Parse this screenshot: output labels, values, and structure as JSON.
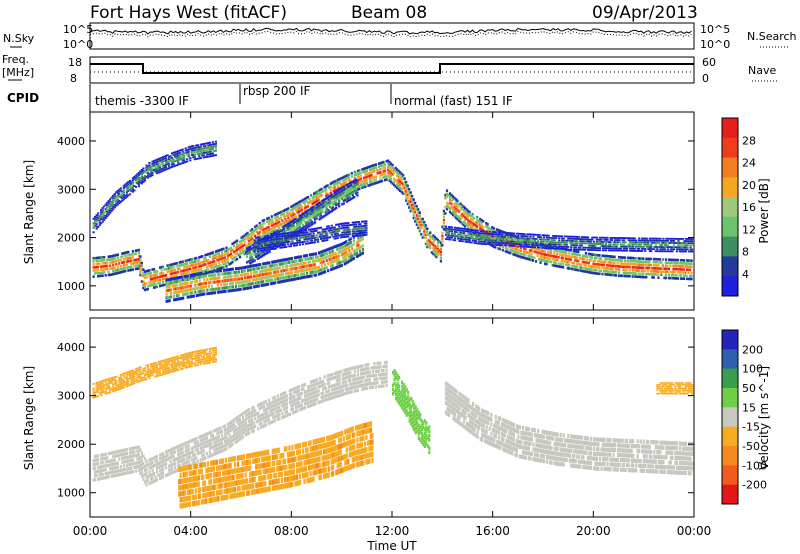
{
  "header": {
    "title": "Fort Hays West (fitACF)",
    "beam": "Beam 08",
    "date": "09/Apr/2013"
  },
  "noise_panel": {
    "left_label": "N.Sky",
    "left_ticks": [
      "10^5",
      "10^0"
    ],
    "right_ticks": [
      "10^5",
      "10^0"
    ],
    "right_label": "N.Search"
  },
  "freq_panel": {
    "left_label_1": "Freq.",
    "left_label_2": "[MHz]",
    "left_ticks": [
      "18",
      "8"
    ],
    "right_ticks": [
      "60",
      "0"
    ],
    "right_label": "Nave"
  },
  "cpid": {
    "label": "CPID",
    "segments": [
      {
        "label": "themis -3300 IF",
        "start_h": 0
      },
      {
        "label": "rbsp 200 IF",
        "start_h": 6
      },
      {
        "label": "normal (fast) 151 IF",
        "start_h": 12
      }
    ]
  },
  "x_axis": {
    "label": "Time UT",
    "ticks": [
      "00:00",
      "04:00",
      "08:00",
      "12:00",
      "16:00",
      "20:00",
      "00:00"
    ]
  },
  "colors": {
    "power": [
      "#1f1fe0",
      "#23399b",
      "#3d8f63",
      "#6bc46b",
      "#9cc97a",
      "#f5a623",
      "#f07f22",
      "#ef3c1f",
      "#e61e1e"
    ],
    "velocity": [
      "#e31919",
      "#f35b20",
      "#f58a1e",
      "#f7ab22",
      "#c8c8c0",
      "#6fcf47",
      "#3a9f4a",
      "#2c61b0",
      "#2424b8"
    ]
  },
  "chart_data": [
    {
      "type": "heatmap",
      "panel": "power",
      "ylabel": "Slant Range [km]",
      "yticks": [
        "1000",
        "2000",
        "3000",
        "4000"
      ],
      "ylim": [
        500,
        4600
      ],
      "xlim_hours": [
        0,
        24
      ],
      "colorbar_label": "Power [dB]",
      "colorbar_ticks": [
        "4",
        "8",
        "12",
        "16",
        "20",
        "24",
        "28"
      ],
      "bands": [
        {
          "x": [
            0.1,
            0.8,
            1.4,
            1.9,
            2.1,
            3.2,
            4.3,
            5.4,
            6.1,
            6.8,
            7.8,
            8.8,
            9.6,
            10.4,
            11.2,
            11.8,
            12.4,
            12.9,
            13.4,
            13.9,
            14.1,
            15.0,
            16.0,
            17.0,
            18.0,
            19.0,
            20.0,
            21.0,
            22.0,
            23.0,
            23.9
          ],
          "y": [
            1380,
            1420,
            1500,
            1550,
            1100,
            1250,
            1400,
            1600,
            1850,
            2150,
            2400,
            2700,
            2950,
            3150,
            3300,
            3400,
            3100,
            2500,
            1950,
            1700,
            2800,
            2350,
            2000,
            1800,
            1650,
            1550,
            1450,
            1400,
            1370,
            1350,
            1330
          ],
          "width": 190,
          "level": 27
        },
        {
          "x": [
            0.1,
            1.0,
            1.8,
            2.3,
            3.2,
            4.0,
            5.0
          ],
          "y": [
            2250,
            2800,
            3150,
            3400,
            3600,
            3750,
            3850
          ],
          "width": 140,
          "level": 12
        },
        {
          "x": [
            6.2,
            7.0,
            7.8,
            8.8,
            9.8,
            10.6
          ],
          "y": [
            1600,
            1850,
            2100,
            2450,
            2800,
            3050
          ],
          "width": 170,
          "level": 14
        },
        {
          "x": [
            3.0,
            4.5,
            6.0,
            7.5,
            9.0,
            10.0,
            10.8
          ],
          "y": [
            900,
            1050,
            1150,
            1300,
            1450,
            1650,
            1900
          ],
          "width": 220,
          "level": 24
        },
        {
          "x": [
            6.5,
            7.8,
            9.0,
            10.0,
            11.0
          ],
          "y": [
            1850,
            1950,
            2050,
            2150,
            2200
          ],
          "width": 140,
          "level": 9
        },
        {
          "x": [
            14.1,
            15.5,
            17.0,
            18.5,
            20.0,
            22.0,
            23.9
          ],
          "y": [
            2100,
            2000,
            1950,
            1900,
            1870,
            1850,
            1840
          ],
          "width": 130,
          "level": 11
        }
      ]
    },
    {
      "type": "heatmap",
      "panel": "velocity",
      "ylabel": "Slant Range [km]",
      "yticks": [
        "1000",
        "2000",
        "3000",
        "4000"
      ],
      "ylim": [
        500,
        4600
      ],
      "xlim_hours": [
        0,
        24
      ],
      "colorbar_label": "Velocity [m s^-1]",
      "colorbar_ticks": [
        "200",
        "100",
        "50",
        "15",
        "-15",
        "-50",
        "-100",
        "-200"
      ],
      "bands": [
        {
          "x": [
            0.1,
            1.0,
            1.9,
            2.2,
            3.2,
            4.3,
            5.4,
            6.2,
            7.2,
            8.3,
            9.3,
            10.2,
            11.0,
            11.8
          ],
          "y": [
            1500,
            1600,
            1700,
            1400,
            1650,
            1900,
            2150,
            2450,
            2700,
            2950,
            3150,
            3300,
            3400,
            3450
          ],
          "width": 240,
          "level": 0
        },
        {
          "x": [
            0.1,
            1.0,
            2.0,
            3.0,
            4.0,
            5.0
          ],
          "y": [
            3100,
            3250,
            3450,
            3600,
            3750,
            3850
          ],
          "width": 140,
          "level": -30
        },
        {
          "x": [
            3.5,
            5.0,
            6.5,
            8.0,
            9.5,
            10.5,
            11.2
          ],
          "y": [
            1100,
            1250,
            1400,
            1550,
            1750,
            1950,
            2050
          ],
          "width": 380,
          "level": -40
        },
        {
          "x": [
            12.0,
            12.5,
            13.0,
            13.5
          ],
          "y": [
            3300,
            2900,
            2400,
            2050
          ],
          "width": 260,
          "level": 35
        },
        {
          "x": [
            14.1,
            15.5,
            17.0,
            18.5,
            20.0,
            22.0,
            23.9
          ],
          "y": [
            2950,
            2400,
            2050,
            1900,
            1800,
            1750,
            1700
          ],
          "width": 300,
          "level": 0
        },
        {
          "x": [
            22.5,
            23.2,
            23.9
          ],
          "y": [
            3150,
            3150,
            3150
          ],
          "width": 110,
          "level": -30
        }
      ]
    }
  ]
}
